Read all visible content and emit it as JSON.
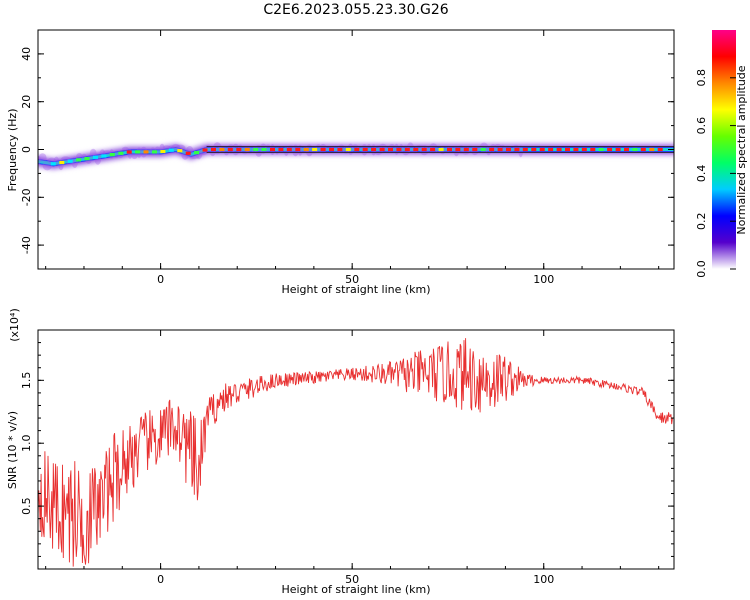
{
  "title": "C2E6.2023.055.23.30.G26",
  "chart_data": [
    {
      "type": "heatmap",
      "title": "C2E6.2023.055.23.30.G26",
      "xlabel": "Height of straight line (km)",
      "ylabel": "Frequency (Hz)",
      "xlim": [
        -32,
        134
      ],
      "ylim": [
        -50,
        50
      ],
      "xticks": [
        "0",
        "50",
        "100"
      ],
      "yticks": [
        "-40",
        "-20",
        "0",
        "20",
        "40"
      ],
      "colorbar": {
        "label": "Normalized spectral amplitude",
        "range": [
          0.0,
          1.0
        ],
        "ticks": [
          "0.0",
          "0.2",
          "0.4",
          "0.6",
          "0.8"
        ],
        "colormap": [
          "#ffffff",
          "#5500cc",
          "#0000ff",
          "#00ccff",
          "#00ff66",
          "#66ff00",
          "#ffff00",
          "#ff8800",
          "#ff0000",
          "#ff0088"
        ]
      },
      "ridge": {
        "x": [
          -32,
          -28,
          -24,
          -20,
          -16,
          -12,
          -8,
          -4,
          0,
          4,
          8,
          12,
          20,
          40,
          60,
          80,
          100,
          120,
          134
        ],
        "frequency": [
          -5,
          -6,
          -5,
          -4,
          -3,
          -2,
          -1,
          -1,
          -1,
          0,
          -2,
          0,
          0,
          0,
          0,
          0,
          0,
          0,
          0
        ]
      }
    },
    {
      "type": "line",
      "xlabel": "Height of straight line (km)",
      "ylabel": "SNR (10 * v/v)",
      "yscale_label": "(x10⁴)",
      "xlim": [
        -32,
        134
      ],
      "ylim": [
        0.0,
        1.9
      ],
      "xticks": [
        "0",
        "50",
        "100"
      ],
      "yticks": [
        "0.5",
        "1.0",
        "1.5"
      ],
      "color": "#e83030",
      "series": [
        {
          "x": [
            -32,
            -28,
            -24,
            -20,
            -16,
            -12,
            -8,
            -4,
            0,
            4,
            8,
            10,
            12,
            16,
            20,
            25,
            30,
            40,
            50,
            60,
            70,
            80,
            85,
            90,
            95,
            100,
            110,
            120,
            126,
            130,
            134
          ],
          "values": [
            0.65,
            0.5,
            0.45,
            0.4,
            0.5,
            0.75,
            0.9,
            1.0,
            1.05,
            1.15,
            0.9,
            0.75,
            1.2,
            1.35,
            1.4,
            1.45,
            1.5,
            1.52,
            1.55,
            1.55,
            1.55,
            1.55,
            1.5,
            1.52,
            1.5,
            1.5,
            1.5,
            1.45,
            1.4,
            1.2,
            1.2
          ],
          "noise": [
            0.35,
            0.4,
            0.45,
            0.45,
            0.35,
            0.35,
            0.3,
            0.25,
            0.25,
            0.25,
            0.35,
            0.4,
            0.15,
            0.12,
            0.1,
            0.08,
            0.06,
            0.05,
            0.05,
            0.1,
            0.22,
            0.3,
            0.3,
            0.2,
            0.06,
            0.03,
            0.03,
            0.03,
            0.04,
            0.05,
            0.05
          ]
        }
      ]
    }
  ]
}
